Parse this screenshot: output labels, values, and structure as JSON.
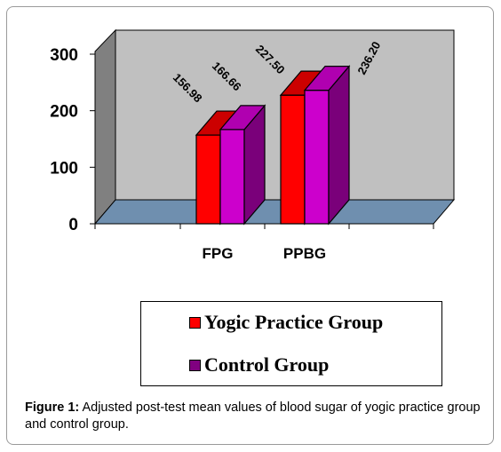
{
  "chart_data": {
    "type": "bar",
    "style": "3d-clustered-column",
    "categories": [
      "FPG",
      "PPBG"
    ],
    "series": [
      {
        "name": "Yogic Practice Group",
        "values": [
          156.98,
          227.5
        ],
        "color": "#ff0000",
        "side_color": "#990000"
      },
      {
        "name": "Control Group",
        "values": [
          166.66,
          236.2
        ],
        "color": "#cc00cc",
        "side_color": "#7a007a"
      }
    ],
    "data_labels": [
      "156.98",
      "166.66",
      "227.50",
      "236.20"
    ],
    "y_ticks": [
      "0",
      "100",
      "200",
      "300"
    ],
    "ylim": [
      0,
      300
    ],
    "wall_color": "#c0c0c0",
    "floor_color": "#6f8faf",
    "grid": false,
    "legend_position": "bottom-center"
  },
  "caption": {
    "label": "Figure 1:",
    "text": " Adjusted post-test mean values of blood sugar of yogic practice group and control group."
  }
}
